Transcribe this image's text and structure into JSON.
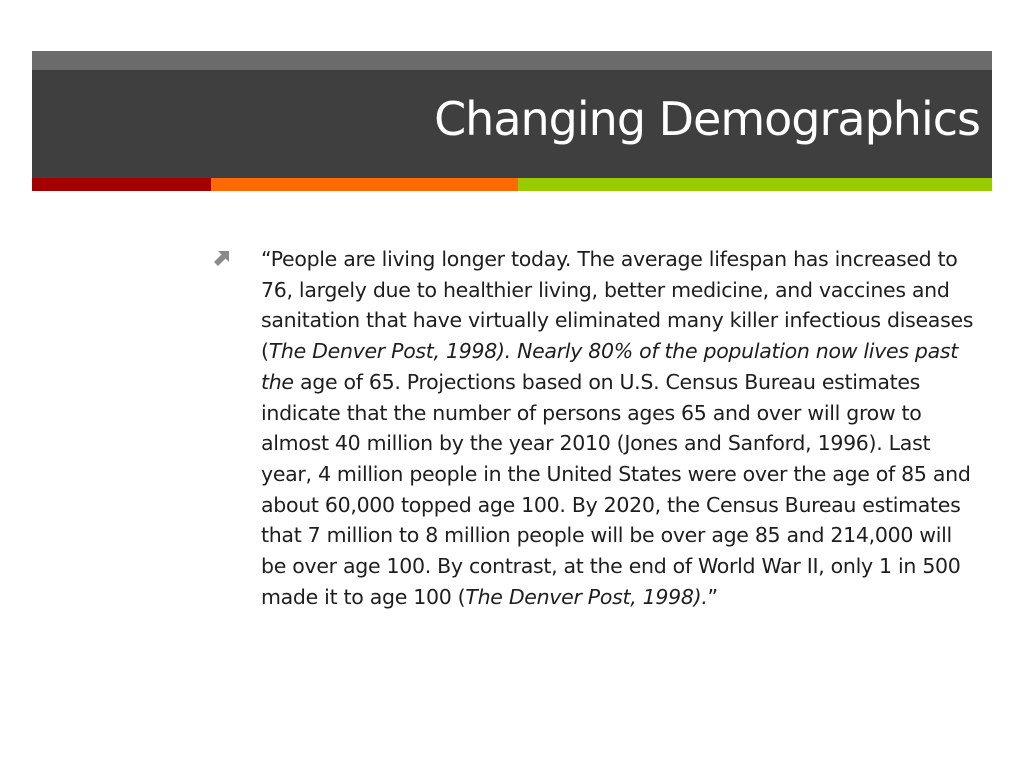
{
  "slide": {
    "title": "Changing Demographics",
    "accent_colors": [
      "#a50000",
      "#ff6a00",
      "#99cc00"
    ],
    "bullet_icon": "arrow-up-right-icon"
  },
  "body": {
    "segments": [
      {
        "text": "“People are living longer today. The average lifespan has increased to 76, largely due to healthier living, better medicine, and vaccines and sanitation that have virtually eliminated many killer infectious diseases (",
        "italic": false
      },
      {
        "text": "The Denver Post, 1998). Nearly 80% of the population now lives past the",
        "italic": true
      },
      {
        "text": " age of 65. Projections based on U.S. Census Bureau estimates indicate that the number of persons ages 65 and over will grow to almost 40 million by the year 2010 (Jones and Sanford, 1996). Last year, 4 million people in the United States were over the age of 85 and about 60,000 topped age 100. By 2020, the Census Bureau estimates that 7 million to 8 million people will be over age 85 and 214,000 will be over age 100. By contrast, at the end of World War II, only 1 in 500 made it to age 100 (",
        "italic": false
      },
      {
        "text": "The Denver Post, 1998).",
        "italic": true
      },
      {
        "text": "”",
        "italic": false
      }
    ]
  }
}
